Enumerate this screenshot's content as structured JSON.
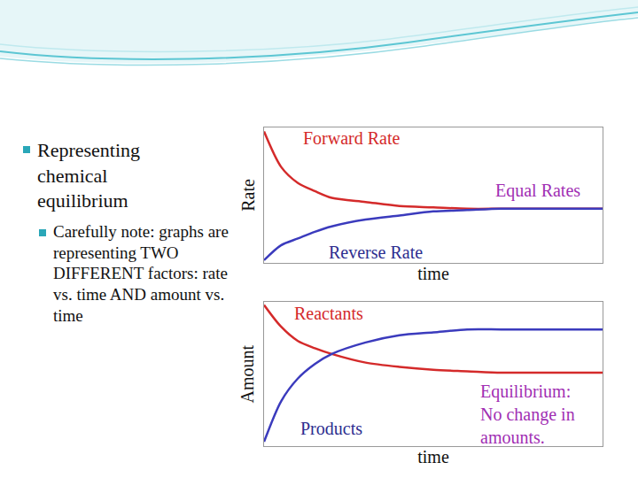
{
  "slide": {
    "bullets": [
      {
        "text": "Representing chemical equilibrium"
      },
      {
        "text": "Carefully note: graphs are representing TWO DIFFERENT factors: rate vs. time AND amount vs. time"
      }
    ]
  },
  "chart_data": [
    {
      "type": "line",
      "y_label": "Rate",
      "x_label": "time",
      "grid": false,
      "tick_labels": false,
      "xlim": [
        0,
        10
      ],
      "ylim": [
        0,
        10
      ],
      "x": [
        0,
        0.5,
        1,
        1.5,
        2,
        3,
        4,
        5,
        6,
        7,
        8,
        9,
        10
      ],
      "series": [
        {
          "color": "#d42a2a",
          "values": [
            9.7,
            7.1,
            5.9,
            5.3,
            4.8,
            4.5,
            4.2,
            4.1,
            4.0,
            4.0,
            4.0,
            4.0,
            4.0
          ]
        },
        {
          "color": "#3b3bbd",
          "values": [
            0.2,
            1.3,
            1.8,
            2.3,
            2.7,
            3.2,
            3.5,
            3.8,
            3.9,
            4.0,
            4.0,
            4.0,
            4.0
          ]
        }
      ],
      "annotations": [
        {
          "lines": [
            "Forward Rate"
          ],
          "x": 2.6,
          "y": 9.2,
          "color": "#d42a2a"
        },
        {
          "lines": [
            "Equal Rates"
          ],
          "x": 8.1,
          "y": 5.3,
          "color": "#a12fb3"
        },
        {
          "lines": [
            "Reverse Rate"
          ],
          "x": 3.3,
          "y": 0.8,
          "color": "#2d2d8f"
        }
      ]
    },
    {
      "type": "line",
      "y_label": "Amount",
      "x_label": "time",
      "grid": false,
      "tick_labels": false,
      "xlim": [
        0,
        10
      ],
      "ylim": [
        0,
        10
      ],
      "x": [
        0,
        0.5,
        1,
        1.5,
        2,
        3,
        4,
        5,
        6,
        7,
        8,
        9,
        10
      ],
      "series": [
        {
          "color": "#d42a2a",
          "values": [
            9.8,
            8.3,
            7.3,
            6.8,
            6.4,
            5.8,
            5.5,
            5.3,
            5.2,
            5.1,
            5.1,
            5.1,
            5.1
          ]
        },
        {
          "color": "#3b3bbd",
          "values": [
            0.3,
            3.1,
            4.7,
            5.7,
            6.4,
            7.2,
            7.7,
            7.9,
            8.1,
            8.1,
            8.1,
            8.1,
            8.1
          ]
        }
      ],
      "annotations": [
        {
          "lines": [
            "Reactants"
          ],
          "x": 1.9,
          "y": 9.2,
          "color": "#d42a2a"
        },
        {
          "lines": [
            "Equilibrium:",
            "No change in",
            "amounts."
          ],
          "x": 7.8,
          "y": 4.6,
          "color": "#a12fb3"
        },
        {
          "lines": [
            "Products"
          ],
          "x": 2.0,
          "y": 1.2,
          "color": "#2d2d8f"
        }
      ]
    }
  ]
}
